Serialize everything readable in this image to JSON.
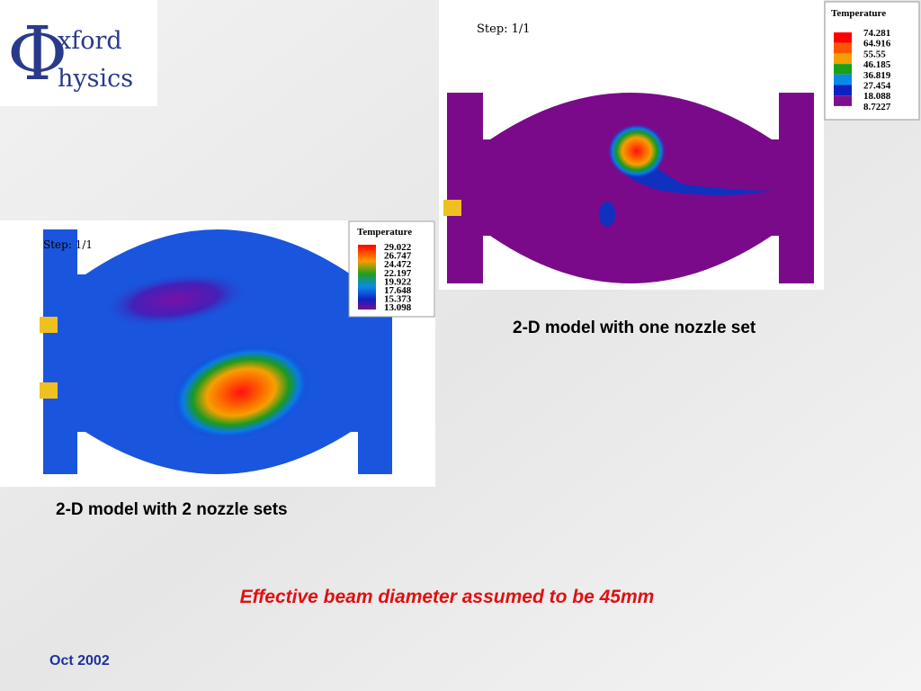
{
  "logo": {
    "symbol": "Φ",
    "line1": "xford",
    "line2": "hysics"
  },
  "figures": [
    {
      "step": "Step: 1/1",
      "legend_title": "Temperature",
      "legend_values": [
        "74.281",
        "64.916",
        "55.55",
        "46.185",
        "36.819",
        "27.454",
        "18.088",
        "8.7227"
      ],
      "caption": "2-D model with one nozzle set"
    },
    {
      "step": "Step: 1/1",
      "legend_title": "Temperature",
      "legend_values": [
        "29.022",
        "26.747",
        "24.472",
        "22.197",
        "19.922",
        "17.648",
        "15.373",
        "13.098"
      ],
      "caption": "2-D model with 2 nozzle sets"
    }
  ],
  "note": "Effective beam diameter assumed to be 45mm",
  "date": "Oct 2002"
}
